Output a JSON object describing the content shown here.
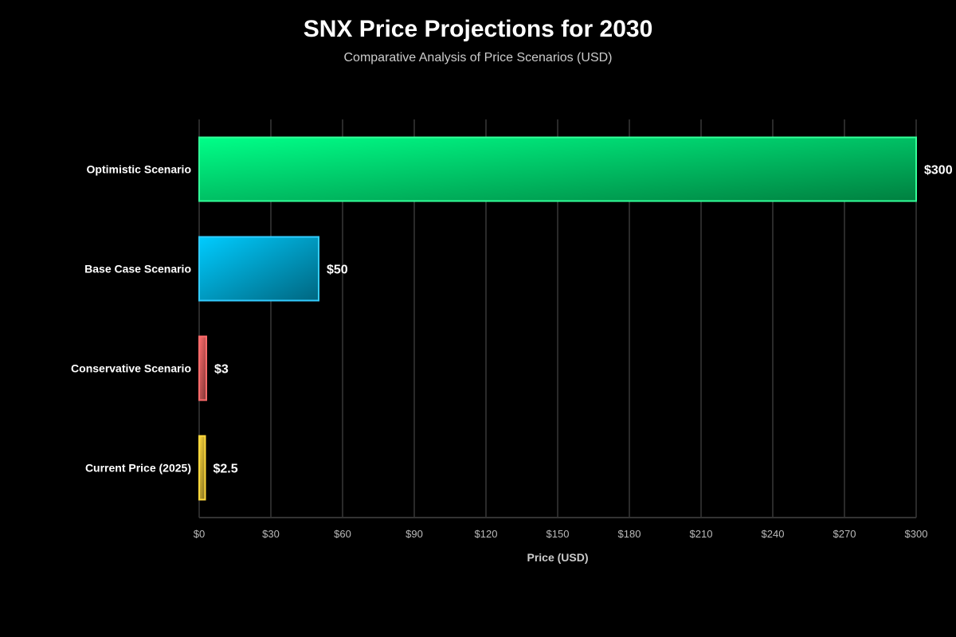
{
  "chart_data": {
    "type": "bar",
    "orientation": "horizontal",
    "title": "SNX Price Projections for 2030",
    "subtitle": "Comparative Analysis of Price Scenarios (USD)",
    "xlabel": "Price (USD)",
    "ylabel": "",
    "xlim": [
      0,
      300
    ],
    "xticks": [
      0,
      30,
      60,
      90,
      120,
      150,
      180,
      210,
      240,
      270,
      300
    ],
    "xtick_labels": [
      "$0",
      "$30",
      "$60",
      "$90",
      "$120",
      "$150",
      "$180",
      "$210",
      "$240",
      "$270",
      "$300"
    ],
    "grid": true,
    "categories": [
      "Optimistic Scenario",
      "Base Case Scenario",
      "Conservative Scenario",
      "Current Price (2025)"
    ],
    "values": [
      300,
      50,
      3,
      2.5
    ],
    "data_labels": [
      "$300",
      "$50",
      "$3",
      "$2.5"
    ],
    "colors": [
      {
        "start": "#00ff88",
        "end": "#008040",
        "border": "#33ff99"
      },
      {
        "start": "#00ccff",
        "end": "#006680",
        "border": "#33ccff"
      },
      {
        "start": "#ff6b6b",
        "end": "#803636",
        "border": "#ff6b6b"
      },
      {
        "start": "#ffd93d",
        "end": "#806d1f",
        "border": "#ffd93d"
      }
    ]
  }
}
